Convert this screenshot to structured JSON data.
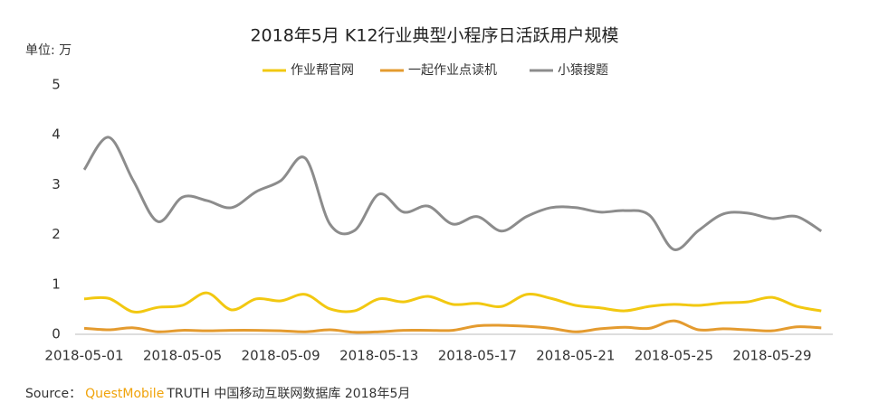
{
  "chart_data": {
    "type": "line",
    "title": "2018年5月 K12行业典型小程序日活跃用户规模",
    "y_unit_label": "单位: 万",
    "categories": [
      "2018-05-01",
      null,
      null,
      null,
      "2018-05-05",
      null,
      null,
      null,
      "2018-05-09",
      null,
      null,
      null,
      "2018-05-13",
      null,
      null,
      null,
      "2018-05-17",
      null,
      null,
      null,
      "2018-05-21",
      null,
      null,
      null,
      "2018-05-25",
      null,
      null,
      null,
      "2018-05-29",
      null,
      null
    ],
    "series": [
      {
        "name": "作业帮官网",
        "color": "#f2c811",
        "values": [
          0.71,
          0.72,
          0.45,
          0.54,
          0.58,
          0.83,
          0.49,
          0.71,
          0.67,
          0.8,
          0.51,
          0.47,
          0.71,
          0.65,
          0.76,
          0.6,
          0.62,
          0.56,
          0.8,
          0.72,
          0.58,
          0.53,
          0.47,
          0.56,
          0.6,
          0.58,
          0.63,
          0.65,
          0.74,
          0.56,
          0.47
        ]
      },
      {
        "name": "一起作业点读机",
        "color": "#e49b2f",
        "values": [
          0.12,
          0.09,
          0.13,
          0.05,
          0.08,
          0.07,
          0.08,
          0.08,
          0.07,
          0.05,
          0.09,
          0.04,
          0.05,
          0.08,
          0.08,
          0.08,
          0.17,
          0.18,
          0.16,
          0.12,
          0.05,
          0.11,
          0.14,
          0.12,
          0.27,
          0.09,
          0.11,
          0.09,
          0.07,
          0.15,
          0.13
        ]
      },
      {
        "name": "小猿搜题",
        "color": "#8c8c8c",
        "values": [
          3.3,
          3.95,
          3.08,
          2.26,
          2.75,
          2.68,
          2.54,
          2.86,
          3.08,
          3.53,
          2.21,
          2.08,
          2.81,
          2.45,
          2.57,
          2.21,
          2.36,
          2.07,
          2.36,
          2.54,
          2.54,
          2.45,
          2.48,
          2.39,
          1.7,
          2.08,
          2.41,
          2.43,
          2.32,
          2.36,
          2.07
        ]
      }
    ],
    "ylim": [
      0,
      5
    ],
    "yticks": [
      0,
      1,
      2,
      3,
      4,
      5
    ],
    "grid": false,
    "legend": "top",
    "source": {
      "prefix": "Source：",
      "brand": "QuestMobile",
      "brand_color": "#f0a30a",
      "rest": "TRUTH 中国移动互联网数据库 2018年5月"
    }
  }
}
